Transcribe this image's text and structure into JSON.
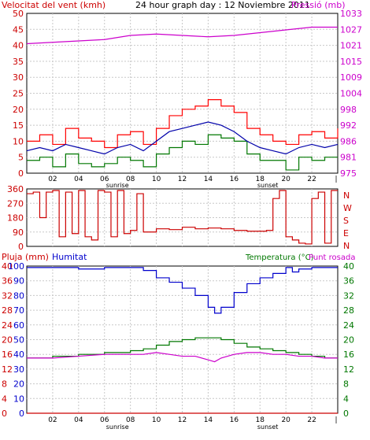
{
  "colors": {
    "wind": "#cc0000",
    "gust": "#ff0000",
    "avg": "#0000aa",
    "green": "#007700",
    "pressure": "#cc00cc",
    "dew": "#cc00cc",
    "humidity": "#0000cc",
    "temperature": "#007700",
    "grid": "#c8c8c8",
    "frame": "#000000"
  },
  "chart_data": [
    {
      "type": "line",
      "title": "24 hour graph day : 12 Noviembre 2011",
      "left_label": "Velocitat del vent (kmh)",
      "right_label": "Pressió (mb)",
      "x_ticks": [
        "02",
        "04",
        "06",
        "08",
        "10",
        "12",
        "14",
        "16",
        "18",
        "20",
        "22"
      ],
      "x_annotations": [
        "sunrise",
        "sunset"
      ],
      "y_left": {
        "ticks": [
          "0",
          "5",
          "10",
          "15",
          "20",
          "25",
          "30",
          "35",
          "40",
          "45",
          "50"
        ],
        "range": [
          0,
          50
        ]
      },
      "y_right": {
        "ticks": [
          "975",
          "981",
          "986",
          "992",
          "998",
          "1004",
          "1009",
          "1015",
          "1021",
          "1027",
          "1033"
        ],
        "range": [
          975,
          1033
        ]
      },
      "series": [
        {
          "name": "gust",
          "x": [
            0,
            1,
            2,
            3,
            4,
            5,
            6,
            7,
            8,
            9,
            10,
            11,
            12,
            13,
            14,
            15,
            16,
            17,
            18,
            19,
            20,
            21,
            22,
            23,
            24
          ],
          "values": [
            10,
            12,
            9,
            14,
            11,
            10,
            8,
            12,
            13,
            9,
            14,
            18,
            20,
            21,
            23,
            21,
            19,
            14,
            12,
            10,
            9,
            12,
            13,
            11,
            14
          ]
        },
        {
          "name": "average",
          "x": [
            0,
            1,
            2,
            3,
            4,
            5,
            6,
            7,
            8,
            9,
            10,
            11,
            12,
            13,
            14,
            15,
            16,
            17,
            18,
            19,
            20,
            21,
            22,
            23,
            24
          ],
          "values": [
            7,
            8,
            7,
            9,
            8,
            7,
            6,
            8,
            9,
            7,
            10,
            13,
            14,
            15,
            16,
            15,
            13,
            10,
            8,
            7,
            6,
            8,
            9,
            8,
            9
          ]
        },
        {
          "name": "lull",
          "x": [
            0,
            1,
            2,
            3,
            4,
            5,
            6,
            7,
            8,
            9,
            10,
            11,
            12,
            13,
            14,
            15,
            16,
            17,
            18,
            19,
            20,
            21,
            22,
            23,
            24
          ],
          "values": [
            4,
            5,
            2,
            6,
            3,
            2,
            3,
            5,
            4,
            2,
            6,
            8,
            10,
            9,
            12,
            11,
            10,
            6,
            4,
            4,
            1,
            5,
            4,
            5,
            5
          ]
        },
        {
          "name": "pressure",
          "x": [
            0,
            2,
            4,
            6,
            8,
            10,
            12,
            14,
            16,
            18,
            20,
            22,
            24
          ],
          "values": [
            1022,
            1022.5,
            1023,
            1023.5,
            1025,
            1025.5,
            1025,
            1024.5,
            1025,
            1026,
            1027,
            1028,
            1028
          ]
        }
      ]
    },
    {
      "type": "line",
      "y_ticks": [
        "0",
        "90",
        "180",
        "270",
        "360"
      ],
      "y_range": [
        0,
        360
      ],
      "compass_labels": [
        "N",
        "W",
        "S",
        "E",
        "N"
      ],
      "series": [
        {
          "name": "direction",
          "x": [
            0,
            0.5,
            1,
            1.5,
            2,
            2.5,
            3,
            3.5,
            4,
            4.5,
            5,
            5.5,
            6,
            6.5,
            7,
            7.5,
            8,
            8.5,
            9,
            10,
            11,
            12,
            13,
            14,
            15,
            16,
            17,
            18,
            18.5,
            19,
            19.5,
            20,
            20.5,
            21,
            21.5,
            22,
            22.5,
            23,
            23.5,
            24
          ],
          "values": [
            330,
            340,
            180,
            340,
            350,
            60,
            340,
            80,
            350,
            60,
            40,
            350,
            340,
            60,
            350,
            80,
            100,
            330,
            90,
            110,
            105,
            120,
            110,
            115,
            110,
            100,
            95,
            95,
            100,
            300,
            350,
            60,
            40,
            20,
            15,
            300,
            340,
            20,
            350,
            350
          ]
        }
      ]
    },
    {
      "type": "line",
      "left_label_rain": "Pluja (mm)",
      "left_label_humidity": "Humitat",
      "right_label_temperature": "Temperatura (°C)",
      "right_label_dew": "Punt rosada",
      "x_ticks": [
        "02",
        "04",
        "06",
        "08",
        "10",
        "12",
        "14",
        "16",
        "18",
        "20",
        "22"
      ],
      "x_annotations": [
        "sunrise",
        "sunset"
      ],
      "y_rain": {
        "ticks": [
          "0",
          "4",
          "8",
          "12",
          "16",
          "20",
          "24",
          "28",
          "32",
          "36",
          "40"
        ],
        "range": [
          0,
          40
        ]
      },
      "y_humidity": {
        "ticks": [
          "0",
          "10",
          "20",
          "30",
          "40",
          "50",
          "60",
          "70",
          "80",
          "90",
          "100"
        ],
        "range": [
          0,
          100
        ]
      },
      "y_temperature": {
        "ticks": [
          "0",
          "4",
          "8",
          "12",
          "16",
          "20",
          "24",
          "28",
          "32",
          "36",
          "40"
        ],
        "range": [
          0,
          40
        ]
      },
      "series": [
        {
          "name": "humidity",
          "x": [
            0,
            2,
            4,
            6,
            8,
            9,
            10,
            11,
            12,
            13,
            14,
            14.5,
            15,
            16,
            17,
            18,
            19,
            20,
            20.5,
            21,
            22,
            24
          ],
          "values": [
            99,
            99,
            98,
            99,
            99,
            97,
            92,
            89,
            85,
            80,
            72,
            68,
            72,
            82,
            88,
            92,
            95,
            99,
            96,
            98,
            99,
            99
          ]
        },
        {
          "name": "temperature",
          "x": [
            0,
            2,
            4,
            6,
            8,
            9,
            10,
            11,
            12,
            13,
            14,
            15,
            16,
            17,
            18,
            19,
            20,
            21,
            22,
            23,
            24
          ],
          "values": [
            15,
            15.5,
            16,
            16.5,
            17,
            17.5,
            18.5,
            19.5,
            20,
            20.5,
            20.5,
            20,
            19,
            18,
            17.5,
            17,
            16.5,
            16,
            15.5,
            15,
            15
          ]
        },
        {
          "name": "dew",
          "x": [
            0,
            2,
            4,
            6,
            8,
            9,
            10,
            11,
            12,
            13,
            14,
            14.5,
            15,
            16,
            17,
            18,
            19,
            20,
            21,
            22,
            23,
            24
          ],
          "values": [
            15,
            15,
            15.5,
            16,
            16,
            16,
            16.5,
            16,
            15.5,
            15.5,
            14.5,
            14,
            15,
            16,
            16.5,
            16.5,
            16,
            16,
            15.5,
            15.5,
            15,
            15
          ]
        },
        {
          "name": "rain",
          "x": [
            0,
            24
          ],
          "values": [
            0,
            0
          ]
        }
      ]
    }
  ]
}
